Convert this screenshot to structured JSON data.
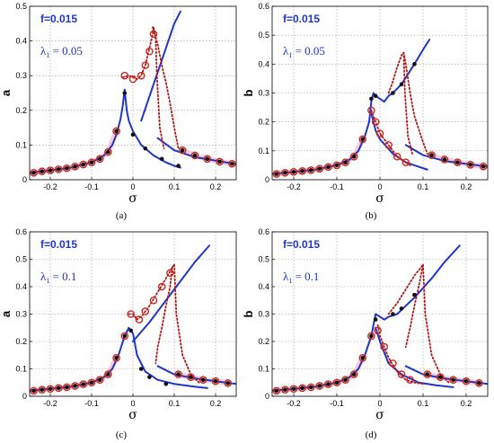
{
  "colors": {
    "solid_curve": "#1f35c9",
    "dotted_curve": "#b01818",
    "black_marker": "#111111",
    "red_marker": "#c8281e",
    "pink_band": "#f7b8cf",
    "label_blue": "#1f35c9"
  },
  "chart_data": [
    {
      "id": "a",
      "type": "line",
      "caption": "(a)",
      "xlabel": "σ",
      "ylabel": "a",
      "f_label": "f=0.015",
      "lambda_label": "λ",
      "lambda_sub": "1",
      "lambda_value": "= 0.05",
      "xlim": [
        -0.25,
        0.25
      ],
      "ylim": [
        0,
        0.5
      ],
      "xticks": [
        "-0.2",
        "-0.1",
        "0",
        "0.1",
        "0.2"
      ],
      "xtick_values": [
        -0.2,
        -0.1,
        0,
        0.1,
        0.2
      ],
      "yticks": [
        "0",
        "0.1",
        "0.2",
        "0.3",
        "0.4",
        "0.5"
      ],
      "ytick_values": [
        0,
        0.1,
        0.2,
        0.3,
        0.4,
        0.5
      ],
      "grid": true,
      "series": [
        {
          "style": "solid",
          "x": [
            -0.25,
            -0.2,
            -0.15,
            -0.1,
            -0.07,
            -0.05,
            -0.04,
            -0.03,
            -0.025,
            -0.02,
            -0.015,
            -0.01,
            0,
            0.02,
            0.05,
            0.08,
            0.1,
            0.115
          ],
          "y": [
            0.02,
            0.027,
            0.035,
            0.05,
            0.07,
            0.1,
            0.13,
            0.175,
            0.21,
            0.26,
            0.2,
            0.17,
            0.14,
            0.1,
            0.07,
            0.05,
            0.04,
            0.035
          ]
        },
        {
          "style": "solid",
          "x": [
            0.02,
            0.04,
            0.06,
            0.08,
            0.1,
            0.115
          ],
          "y": [
            0.17,
            0.24,
            0.31,
            0.38,
            0.45,
            0.485
          ]
        },
        {
          "style": "solid",
          "x": [
            0.06,
            0.1,
            0.15,
            0.2,
            0.25
          ],
          "y": [
            0.12,
            0.085,
            0.065,
            0.055,
            0.045
          ]
        },
        {
          "style": "dotted",
          "x": [
            -0.025,
            -0.01,
            0.01,
            0.02,
            0.03,
            0.04,
            0.048,
            0.05,
            0.055
          ],
          "y": [
            0.295,
            0.3,
            0.29,
            0.3,
            0.33,
            0.38,
            0.42,
            0.44,
            0.41
          ]
        },
        {
          "style": "dotted",
          "x": [
            0.048,
            0.06,
            0.07,
            0.08,
            0.09,
            0.1,
            0.11
          ],
          "y": [
            0.44,
            0.39,
            0.33,
            0.28,
            0.22,
            0.15,
            0.09
          ]
        },
        {
          "style": "dotted",
          "x": [
            0.055,
            0.058,
            0.065,
            0.075
          ],
          "y": [
            0.41,
            0.3,
            0.15,
            0.09
          ]
        }
      ],
      "markers_black": {
        "x": [
          -0.24,
          -0.22,
          -0.2,
          -0.18,
          -0.16,
          -0.14,
          -0.12,
          -0.1,
          -0.08,
          -0.06,
          -0.04,
          -0.02,
          0.0,
          0.03,
          0.07,
          0.11,
          0.12,
          0.15,
          0.18,
          0.21,
          0.24
        ],
        "y": [
          0.02,
          0.024,
          0.027,
          0.03,
          0.033,
          0.038,
          0.044,
          0.05,
          0.06,
          0.08,
          0.14,
          0.25,
          0.13,
          0.09,
          0.06,
          0.04,
          0.085,
          0.07,
          0.06,
          0.052,
          0.046
        ]
      },
      "markers_red": {
        "x": [
          -0.24,
          -0.22,
          -0.2,
          -0.18,
          -0.16,
          -0.14,
          -0.12,
          -0.1,
          -0.08,
          -0.06,
          -0.04,
          -0.02,
          0.0,
          0.02,
          0.03,
          0.04,
          0.05,
          0.12,
          0.15,
          0.18,
          0.21,
          0.24
        ],
        "y": [
          0.02,
          0.024,
          0.027,
          0.03,
          0.033,
          0.038,
          0.044,
          0.05,
          0.06,
          0.08,
          0.14,
          0.3,
          0.29,
          0.3,
          0.33,
          0.37,
          0.42,
          0.085,
          0.07,
          0.06,
          0.052,
          0.046
        ]
      }
    },
    {
      "id": "b",
      "type": "line",
      "caption": "(b)",
      "xlabel": "σ",
      "ylabel": "b",
      "f_label": "f=0.015",
      "lambda_label": "λ",
      "lambda_sub": "1",
      "lambda_value": "= 0.05",
      "xlim": [
        -0.25,
        0.25
      ],
      "ylim": [
        0,
        0.6
      ],
      "xticks": [
        "-0.2",
        "-0.1",
        "0",
        "0.1",
        "0.2"
      ],
      "xtick_values": [
        -0.2,
        -0.1,
        0,
        0.1,
        0.2
      ],
      "yticks": [
        "0",
        "0.1",
        "0.2",
        "0.3",
        "0.4",
        "0.5",
        "0.6"
      ],
      "ytick_values": [
        0,
        0.1,
        0.2,
        0.3,
        0.4,
        0.5,
        0.6
      ],
      "grid": true,
      "series": [
        {
          "style": "solid",
          "x": [
            -0.25,
            -0.2,
            -0.15,
            -0.1,
            -0.07,
            -0.05,
            -0.035,
            -0.025,
            -0.02,
            -0.015,
            -0.01,
            0,
            0.01,
            0.02,
            0.03,
            0.05,
            0.08,
            0.1,
            0.115
          ],
          "y": [
            0.02,
            0.027,
            0.035,
            0.05,
            0.07,
            0.1,
            0.15,
            0.2,
            0.27,
            0.3,
            0.29,
            0.28,
            0.27,
            0.29,
            0.3,
            0.33,
            0.4,
            0.45,
            0.485
          ]
        },
        {
          "style": "solid",
          "x": [
            -0.02,
            -0.01,
            0,
            0.03,
            0.06,
            0.09,
            0.11
          ],
          "y": [
            0.23,
            0.17,
            0.14,
            0.09,
            0.06,
            0.045,
            0.035
          ]
        },
        {
          "style": "solid",
          "x": [
            0.06,
            0.1,
            0.15,
            0.2,
            0.25
          ],
          "y": [
            0.12,
            0.085,
            0.065,
            0.055,
            0.045
          ]
        },
        {
          "style": "dotted",
          "x": [
            -0.02,
            -0.01,
            0.0,
            0.02,
            0.04,
            0.05,
            0.06,
            0.07
          ],
          "y": [
            0.24,
            0.2,
            0.16,
            0.12,
            0.08,
            0.07,
            0.06,
            0.05
          ]
        },
        {
          "style": "dotted",
          "x": [
            0.02,
            0.03,
            0.04,
            0.05,
            0.055,
            0.06,
            0.07,
            0.08,
            0.1,
            0.11
          ],
          "y": [
            0.3,
            0.34,
            0.39,
            0.43,
            0.44,
            0.4,
            0.3,
            0.22,
            0.13,
            0.09
          ]
        },
        {
          "style": "dotted",
          "x": [
            0.055,
            0.058,
            0.065,
            0.075
          ],
          "y": [
            0.44,
            0.3,
            0.15,
            0.09
          ]
        }
      ],
      "markers_black": {
        "x": [
          -0.24,
          -0.22,
          -0.2,
          -0.18,
          -0.16,
          -0.14,
          -0.12,
          -0.1,
          -0.08,
          -0.06,
          -0.04,
          -0.02,
          -0.01,
          0.03,
          0.05,
          0.08,
          0.12,
          0.15,
          0.18,
          0.21,
          0.24
        ],
        "y": [
          0.02,
          0.024,
          0.027,
          0.03,
          0.033,
          0.038,
          0.044,
          0.05,
          0.06,
          0.08,
          0.14,
          0.28,
          0.29,
          0.3,
          0.33,
          0.4,
          0.085,
          0.07,
          0.06,
          0.052,
          0.046
        ]
      },
      "markers_red": {
        "x": [
          -0.24,
          -0.22,
          -0.2,
          -0.18,
          -0.16,
          -0.14,
          -0.12,
          -0.1,
          -0.08,
          -0.06,
          -0.04,
          -0.02,
          -0.01,
          0.0,
          0.02,
          0.04,
          0.06,
          0.12,
          0.15,
          0.18,
          0.21,
          0.24
        ],
        "y": [
          0.02,
          0.024,
          0.027,
          0.03,
          0.033,
          0.038,
          0.044,
          0.05,
          0.06,
          0.08,
          0.14,
          0.24,
          0.2,
          0.16,
          0.12,
          0.08,
          0.06,
          0.085,
          0.07,
          0.06,
          0.052,
          0.046
        ]
      }
    },
    {
      "id": "c",
      "type": "line",
      "caption": "(c)",
      "xlabel": "σ",
      "ylabel": "a",
      "f_label": "f=0.015",
      "lambda_label": "λ",
      "lambda_sub": "1",
      "lambda_value": "= 0.1",
      "xlim": [
        -0.25,
        0.25
      ],
      "ylim": [
        0,
        0.6
      ],
      "xticks": [
        "-0.2",
        "-0.1",
        "0",
        "0.1",
        "0.2"
      ],
      "xtick_values": [
        -0.2,
        -0.1,
        0,
        0.1,
        0.2
      ],
      "yticks": [
        "0",
        "0.1",
        "0.2",
        "0.3",
        "0.4",
        "0.5",
        "0.6"
      ],
      "ytick_values": [
        0,
        0.1,
        0.2,
        0.3,
        0.4,
        0.5,
        0.6
      ],
      "grid": true,
      "series": [
        {
          "style": "solid",
          "x": [
            -0.25,
            -0.2,
            -0.15,
            -0.1,
            -0.07,
            -0.05,
            -0.035,
            -0.02,
            -0.01,
            0,
            0.01,
            0.03,
            0.06,
            0.1,
            0.15,
            0.18
          ],
          "y": [
            0.02,
            0.027,
            0.035,
            0.05,
            0.07,
            0.1,
            0.15,
            0.22,
            0.25,
            0.23,
            0.15,
            0.09,
            0.06,
            0.045,
            0.035,
            0.03
          ]
        },
        {
          "style": "solid",
          "x": [
            0.0,
            0.04,
            0.08,
            0.12,
            0.15,
            0.185
          ],
          "y": [
            0.2,
            0.27,
            0.35,
            0.43,
            0.49,
            0.55
          ]
        },
        {
          "style": "solid",
          "x": [
            0.06,
            0.1,
            0.15,
            0.2,
            0.25
          ],
          "y": [
            0.11,
            0.08,
            0.065,
            0.055,
            0.045
          ]
        },
        {
          "style": "dotted",
          "x": [
            -0.01,
            0.0,
            0.01,
            0.02,
            0.04,
            0.06,
            0.08,
            0.095,
            0.1
          ],
          "y": [
            0.3,
            0.3,
            0.28,
            0.29,
            0.33,
            0.38,
            0.43,
            0.47,
            0.48
          ]
        },
        {
          "style": "dotted",
          "x": [
            0.095,
            0.09,
            0.08,
            0.07,
            0.06,
            0.055
          ],
          "y": [
            0.47,
            0.4,
            0.33,
            0.25,
            0.18,
            0.12
          ]
        },
        {
          "style": "dotted",
          "x": [
            0.1,
            0.105,
            0.12,
            0.14,
            0.16
          ],
          "y": [
            0.48,
            0.3,
            0.15,
            0.08,
            0.05
          ]
        }
      ],
      "markers_black": {
        "x": [
          -0.24,
          -0.22,
          -0.2,
          -0.18,
          -0.16,
          -0.14,
          -0.12,
          -0.1,
          -0.08,
          -0.06,
          -0.04,
          -0.02,
          -0.005,
          0.02,
          0.04,
          0.08,
          0.11,
          0.14,
          0.17,
          0.2,
          0.23
        ],
        "y": [
          0.02,
          0.024,
          0.027,
          0.03,
          0.033,
          0.038,
          0.044,
          0.05,
          0.06,
          0.08,
          0.14,
          0.22,
          0.24,
          0.1,
          0.07,
          0.045,
          0.08,
          0.07,
          0.06,
          0.055,
          0.048
        ]
      },
      "markers_red": {
        "x": [
          -0.24,
          -0.22,
          -0.2,
          -0.18,
          -0.16,
          -0.14,
          -0.12,
          -0.1,
          -0.08,
          -0.06,
          -0.04,
          -0.02,
          -0.005,
          0.015,
          0.03,
          0.05,
          0.07,
          0.09,
          0.11,
          0.14,
          0.17,
          0.2,
          0.23
        ],
        "y": [
          0.02,
          0.024,
          0.027,
          0.03,
          0.033,
          0.038,
          0.044,
          0.05,
          0.06,
          0.08,
          0.14,
          0.22,
          0.3,
          0.28,
          0.31,
          0.35,
          0.4,
          0.45,
          0.08,
          0.07,
          0.06,
          0.055,
          0.048
        ]
      }
    },
    {
      "id": "d",
      "type": "line",
      "caption": "(d)",
      "xlabel": "σ",
      "ylabel": "b",
      "f_label": "f=0.015",
      "lambda_label": "λ",
      "lambda_sub": "1",
      "lambda_value": "= 0.1",
      "xlim": [
        -0.25,
        0.25
      ],
      "ylim": [
        0,
        0.6
      ],
      "xticks": [
        "-0.2",
        "-0.1",
        "0",
        "0.1",
        "0.2"
      ],
      "xtick_values": [
        -0.2,
        -0.1,
        0,
        0.1,
        0.2
      ],
      "yticks": [
        "0",
        "0.1",
        "0.2",
        "0.3",
        "0.4",
        "0.5",
        "0.6"
      ],
      "ytick_values": [
        0,
        0.1,
        0.2,
        0.3,
        0.4,
        0.5,
        0.6
      ],
      "grid": true,
      "series": [
        {
          "style": "solid",
          "x": [
            -0.25,
            -0.2,
            -0.15,
            -0.1,
            -0.07,
            -0.05,
            -0.035,
            -0.02,
            -0.01,
            0,
            0.01,
            0.02,
            0.04,
            0.08,
            0.12,
            0.15,
            0.185
          ],
          "y": [
            0.02,
            0.027,
            0.035,
            0.05,
            0.07,
            0.1,
            0.15,
            0.22,
            0.3,
            0.29,
            0.28,
            0.29,
            0.3,
            0.36,
            0.43,
            0.49,
            0.55
          ]
        },
        {
          "style": "solid",
          "x": [
            -0.01,
            0.0,
            0.02,
            0.05,
            0.09,
            0.13,
            0.17
          ],
          "y": [
            0.25,
            0.2,
            0.12,
            0.08,
            0.05,
            0.04,
            0.033
          ]
        },
        {
          "style": "solid",
          "x": [
            0.06,
            0.1,
            0.15,
            0.2,
            0.25
          ],
          "y": [
            0.11,
            0.08,
            0.065,
            0.055,
            0.045
          ]
        },
        {
          "style": "dotted",
          "x": [
            -0.005,
            0.0,
            0.02,
            0.04,
            0.06,
            0.08,
            0.1
          ],
          "y": [
            0.26,
            0.22,
            0.14,
            0.09,
            0.06,
            0.05,
            0.045
          ]
        },
        {
          "style": "dotted",
          "x": [
            0.02,
            0.04,
            0.06,
            0.08,
            0.095,
            0.1,
            0.09,
            0.08,
            0.07,
            0.06
          ],
          "y": [
            0.3,
            0.34,
            0.39,
            0.44,
            0.47,
            0.48,
            0.4,
            0.33,
            0.25,
            0.18
          ]
        },
        {
          "style": "dotted",
          "x": [
            0.1,
            0.105,
            0.12,
            0.14,
            0.16
          ],
          "y": [
            0.48,
            0.3,
            0.15,
            0.08,
            0.05
          ]
        }
      ],
      "markers_black": {
        "x": [
          -0.24,
          -0.22,
          -0.2,
          -0.18,
          -0.16,
          -0.14,
          -0.12,
          -0.1,
          -0.08,
          -0.06,
          -0.04,
          -0.02,
          -0.01,
          0.03,
          0.05,
          0.08,
          0.11,
          0.14,
          0.17,
          0.2,
          0.23
        ],
        "y": [
          0.02,
          0.024,
          0.027,
          0.03,
          0.033,
          0.038,
          0.044,
          0.05,
          0.06,
          0.08,
          0.14,
          0.22,
          0.28,
          0.3,
          0.32,
          0.37,
          0.08,
          0.07,
          0.06,
          0.055,
          0.048
        ]
      },
      "markers_red": {
        "x": [
          -0.24,
          -0.22,
          -0.2,
          -0.18,
          -0.16,
          -0.14,
          -0.12,
          -0.1,
          -0.08,
          -0.06,
          -0.04,
          -0.02,
          -0.005,
          0.01,
          0.03,
          0.05,
          0.07,
          0.11,
          0.14,
          0.17,
          0.2,
          0.23
        ],
        "y": [
          0.02,
          0.024,
          0.027,
          0.03,
          0.033,
          0.038,
          0.044,
          0.05,
          0.06,
          0.08,
          0.14,
          0.22,
          0.24,
          0.18,
          0.12,
          0.08,
          0.06,
          0.08,
          0.07,
          0.06,
          0.055,
          0.048
        ]
      }
    }
  ]
}
